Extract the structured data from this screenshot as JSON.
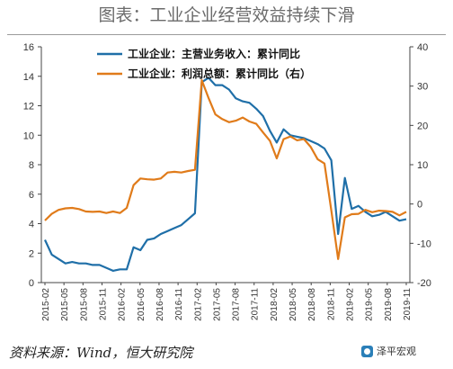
{
  "header": {
    "title": "图表：工业企业经营效益持续下滑"
  },
  "footer": {
    "source": "资料来源：Wind，恒大研究院",
    "brand": "泽平宏观"
  },
  "chart_data": {
    "type": "line",
    "title": "图表：工业企业经营效益持续下滑",
    "left_axis": {
      "min": 0,
      "max": 16,
      "ticks": [
        0,
        2,
        4,
        6,
        8,
        10,
        12,
        14,
        16
      ]
    },
    "right_axis": {
      "min": -20,
      "max": 40,
      "ticks": [
        -20,
        -10,
        0,
        10,
        20,
        30,
        40
      ]
    },
    "x_labels": [
      "2015-02",
      "2015-05",
      "2015-08",
      "2015-11",
      "2016-02",
      "2016-05",
      "2016-08",
      "2016-11",
      "2017-02",
      "2017-05",
      "2017-08",
      "2017-11",
      "2018-02",
      "2018-05",
      "2018-08",
      "2018-11",
      "2019-02",
      "2019-05",
      "2019-08",
      "2019-11"
    ],
    "legend_position": "top-left",
    "series": [
      {
        "name": "工业企业：主营业务收入：累计同比",
        "axis": "left",
        "color": "#1f6fa8",
        "values": [
          2.9,
          1.9,
          1.6,
          1.3,
          1.4,
          1.3,
          1.3,
          1.2,
          1.2,
          1.0,
          0.8,
          0.9,
          0.9,
          2.4,
          2.2,
          2.9,
          3.0,
          3.3,
          3.5,
          3.7,
          3.9,
          4.3,
          4.7,
          13.6,
          13.9,
          13.4,
          13.4,
          13.1,
          12.5,
          12.3,
          12.2,
          11.8,
          11.3,
          10.3,
          9.5,
          10.4,
          10.0,
          9.9,
          9.8,
          9.6,
          9.4,
          9.1,
          8.3,
          3.3,
          7.1,
          5.0,
          5.2,
          4.8,
          4.5,
          4.6,
          4.8,
          4.5,
          4.2,
          4.3
        ]
      },
      {
        "name": "工业企业：利润总额：累计同比（右）",
        "axis": "right",
        "color": "#e07b1a",
        "values": [
          -4.2,
          -2.5,
          -1.5,
          -1.1,
          -1.0,
          -1.3,
          -1.9,
          -2.0,
          -1.9,
          -2.3,
          -1.9,
          -2.3,
          -1.0,
          4.8,
          6.5,
          6.3,
          6.2,
          6.5,
          8.0,
          8.2,
          8.0,
          8.4,
          8.7,
          31.5,
          27.0,
          22.8,
          21.6,
          20.8,
          21.2,
          22.0,
          21.0,
          20.4,
          18.2,
          16.1,
          11.6,
          16.5,
          17.2,
          16.2,
          16.5,
          14.5,
          11.4,
          10.3,
          -1.6,
          -14.0,
          -3.4,
          -2.6,
          -2.5,
          -1.5,
          -2.1,
          -1.7,
          -1.8,
          -2.0,
          -2.9,
          -2.0
        ]
      }
    ]
  }
}
